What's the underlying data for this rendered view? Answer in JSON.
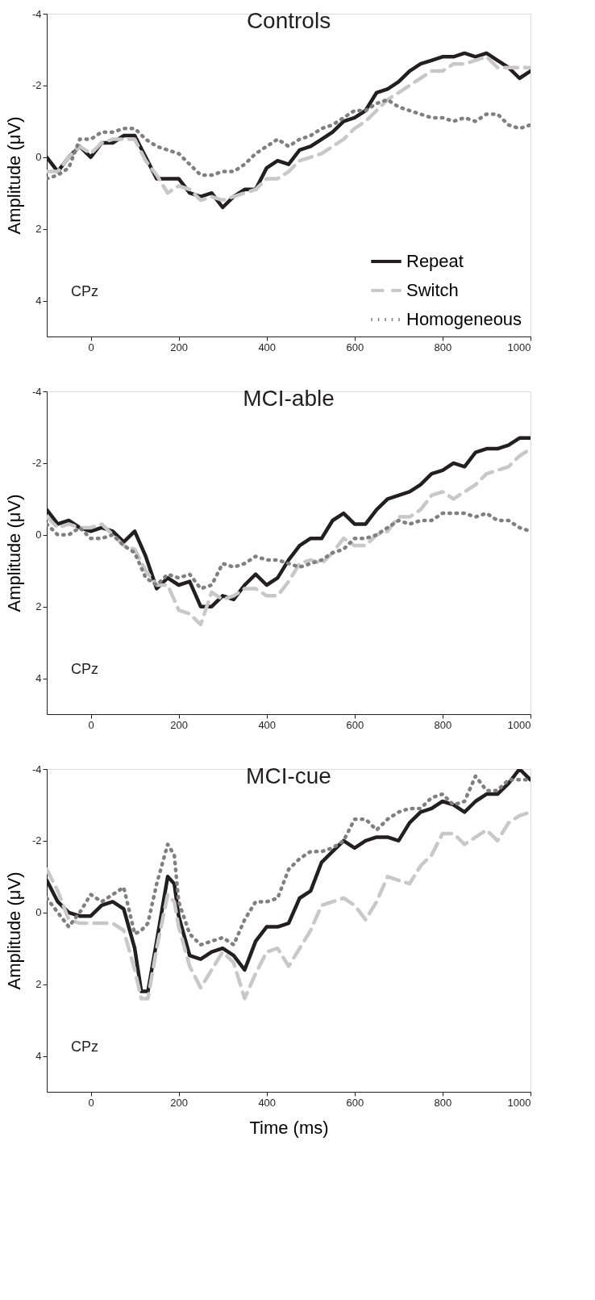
{
  "chart_data": [
    {
      "type": "line",
      "title": "Controls",
      "ylabel": "Amplitude (μV)",
      "annotations": [
        "CPz"
      ],
      "legend": "bottom right",
      "grid": false,
      "x": [
        -100,
        -75,
        -50,
        -25,
        0,
        25,
        50,
        75,
        100,
        125,
        150,
        175,
        200,
        225,
        250,
        275,
        300,
        325,
        350,
        375,
        400,
        425,
        450,
        475,
        500,
        525,
        550,
        575,
        600,
        625,
        650,
        675,
        700,
        725,
        750,
        775,
        800,
        825,
        850,
        875,
        900,
        925,
        950,
        975,
        1000
      ],
      "xlim": [
        -100,
        1000
      ],
      "xticks": [
        0,
        200,
        400,
        600,
        800,
        1000
      ],
      "ylim": [
        5,
        -4
      ],
      "yticks": [
        -4,
        -2,
        0,
        2,
        4
      ],
      "series": [
        {
          "name": "Repeat",
          "color": "#231f20",
          "line_style": "solid",
          "values": [
            0.0,
            0.4,
            0.0,
            -0.3,
            0.0,
            -0.4,
            -0.4,
            -0.6,
            -0.6,
            0.0,
            0.6,
            0.6,
            0.6,
            1.0,
            1.1,
            1.0,
            1.4,
            1.1,
            0.9,
            0.9,
            0.3,
            0.1,
            0.2,
            -0.2,
            -0.3,
            -0.5,
            -0.7,
            -1.0,
            -1.1,
            -1.3,
            -1.8,
            -1.9,
            -2.1,
            -2.4,
            -2.6,
            -2.7,
            -2.8,
            -2.8,
            -2.9,
            -2.8,
            -2.9,
            -2.7,
            -2.5,
            -2.2,
            -2.4
          ]
        },
        {
          "name": "Switch",
          "color": "#c8c8c8",
          "line_style": "dashed",
          "values": [
            0.4,
            0.4,
            0.0,
            -0.3,
            -0.1,
            -0.4,
            -0.5,
            -0.5,
            -0.5,
            0.1,
            0.5,
            1.0,
            0.8,
            0.9,
            1.2,
            1.1,
            1.2,
            1.1,
            1.0,
            0.9,
            0.6,
            0.6,
            0.4,
            0.1,
            0.0,
            -0.1,
            -0.3,
            -0.5,
            -0.8,
            -1.0,
            -1.3,
            -1.6,
            -1.8,
            -2.0,
            -2.2,
            -2.4,
            -2.4,
            -2.6,
            -2.6,
            -2.7,
            -2.8,
            -2.5,
            -2.5,
            -2.5,
            -2.5
          ]
        },
        {
          "name": "Homogeneous",
          "color": "#808080",
          "line_style": "dotted",
          "values": [
            0.6,
            0.5,
            0.3,
            -0.5,
            -0.5,
            -0.7,
            -0.7,
            -0.8,
            -0.8,
            -0.5,
            -0.3,
            -0.2,
            -0.1,
            0.2,
            0.5,
            0.5,
            0.4,
            0.4,
            0.2,
            -0.1,
            -0.3,
            -0.5,
            -0.3,
            -0.5,
            -0.6,
            -0.8,
            -0.9,
            -1.1,
            -1.3,
            -1.3,
            -1.5,
            -1.6,
            -1.4,
            -1.3,
            -1.2,
            -1.1,
            -1.1,
            -1.0,
            -1.1,
            -1.0,
            -1.2,
            -1.2,
            -0.9,
            -0.8,
            -0.9
          ]
        }
      ]
    },
    {
      "type": "line",
      "title": "MCI-able",
      "ylabel": "Amplitude (μV)",
      "annotations": [
        "CPz"
      ],
      "grid": false,
      "x": [
        -100,
        -75,
        -50,
        -25,
        0,
        25,
        50,
        75,
        100,
        125,
        150,
        175,
        200,
        225,
        250,
        275,
        300,
        325,
        350,
        375,
        400,
        425,
        450,
        475,
        500,
        525,
        550,
        575,
        600,
        625,
        650,
        675,
        700,
        725,
        750,
        775,
        800,
        825,
        850,
        875,
        900,
        925,
        950,
        975,
        1000
      ],
      "xlim": [
        -100,
        1000
      ],
      "xticks": [
        0,
        200,
        400,
        600,
        800,
        1000
      ],
      "ylim": [
        5,
        -4
      ],
      "yticks": [
        -4,
        -2,
        0,
        2,
        4
      ],
      "series": [
        {
          "color": "#231f20",
          "line_style": "solid",
          "values": [
            -0.7,
            -0.3,
            -0.4,
            -0.2,
            -0.1,
            -0.2,
            -0.1,
            0.2,
            -0.1,
            0.6,
            1.5,
            1.2,
            1.4,
            1.3,
            2.0,
            2.0,
            1.7,
            1.8,
            1.4,
            1.1,
            1.4,
            1.2,
            0.7,
            0.3,
            0.1,
            0.1,
            -0.4,
            -0.6,
            -0.3,
            -0.3,
            -0.7,
            -1.0,
            -1.1,
            -1.2,
            -1.4,
            -1.7,
            -1.8,
            -2.0,
            -1.9,
            -2.3,
            -2.4,
            -2.4,
            -2.5,
            -2.7,
            -2.7
          ]
        },
        {
          "color": "#c8c8c8",
          "line_style": "dashed",
          "values": [
            -0.5,
            -0.2,
            -0.3,
            -0.2,
            -0.2,
            -0.3,
            0.0,
            0.3,
            0.4,
            1.0,
            1.4,
            1.4,
            2.1,
            2.2,
            2.5,
            1.6,
            1.8,
            1.7,
            1.5,
            1.5,
            1.7,
            1.7,
            1.3,
            0.8,
            0.7,
            0.8,
            0.5,
            0.1,
            0.3,
            0.3,
            0.0,
            -0.1,
            -0.5,
            -0.5,
            -0.7,
            -1.1,
            -1.2,
            -1.0,
            -1.2,
            -1.4,
            -1.7,
            -1.8,
            -1.9,
            -2.2,
            -2.4
          ]
        },
        {
          "color": "#808080",
          "line_style": "dotted",
          "values": [
            -0.3,
            0.0,
            0.0,
            -0.2,
            0.1,
            0.1,
            0.0,
            0.3,
            0.5,
            1.2,
            1.4,
            1.1,
            1.2,
            1.1,
            1.5,
            1.4,
            0.8,
            0.9,
            0.8,
            0.6,
            0.7,
            0.7,
            0.8,
            0.9,
            0.8,
            0.7,
            0.5,
            0.4,
            0.1,
            0.1,
            0.0,
            -0.2,
            -0.4,
            -0.3,
            -0.4,
            -0.4,
            -0.6,
            -0.6,
            -0.6,
            -0.5,
            -0.6,
            -0.4,
            -0.4,
            -0.2,
            -0.1
          ]
        }
      ]
    },
    {
      "type": "line",
      "title": "MCI-cue",
      "xlabel": "Time (ms)",
      "ylabel": "Amplitude (μV)",
      "annotations": [
        "CPz"
      ],
      "grid": false,
      "x": [
        -100,
        -75,
        -50,
        -25,
        0,
        25,
        50,
        75,
        100,
        115,
        130,
        150,
        175,
        190,
        200,
        225,
        250,
        275,
        300,
        325,
        350,
        375,
        400,
        425,
        450,
        475,
        500,
        525,
        550,
        575,
        600,
        625,
        650,
        675,
        700,
        725,
        750,
        775,
        800,
        825,
        850,
        875,
        900,
        925,
        950,
        975,
        1000
      ],
      "xlim": [
        -100,
        1000
      ],
      "xticks": [
        0,
        200,
        400,
        600,
        800,
        1000
      ],
      "ylim": [
        5,
        -4
      ],
      "yticks": [
        -4,
        -2,
        0,
        2,
        4
      ],
      "series": [
        {
          "color": "#231f20",
          "line_style": "solid",
          "values": [
            -0.9,
            -0.3,
            0.0,
            0.1,
            0.1,
            -0.2,
            -0.3,
            -0.1,
            1.0,
            2.2,
            2.2,
            0.8,
            -1.0,
            -0.8,
            0.1,
            1.2,
            1.3,
            1.1,
            1.0,
            1.2,
            1.6,
            0.8,
            0.4,
            0.4,
            0.3,
            -0.4,
            -0.6,
            -1.4,
            -1.7,
            -2.0,
            -1.8,
            -2.0,
            -2.1,
            -2.1,
            -2.0,
            -2.5,
            -2.8,
            -2.9,
            -3.1,
            -3.0,
            -2.8,
            -3.1,
            -3.3,
            -3.3,
            -3.6,
            -4.0,
            -3.7
          ]
        },
        {
          "color": "#c8c8c8",
          "line_style": "dashed",
          "values": [
            -1.2,
            -0.6,
            0.2,
            0.3,
            0.3,
            0.3,
            0.3,
            0.5,
            1.6,
            2.4,
            2.4,
            1.0,
            -0.5,
            -0.3,
            0.4,
            1.5,
            2.1,
            1.6,
            1.1,
            1.4,
            2.4,
            1.7,
            1.1,
            1.0,
            1.5,
            1.0,
            0.5,
            -0.2,
            -0.3,
            -0.4,
            -0.2,
            0.2,
            -0.3,
            -1.0,
            -0.9,
            -0.8,
            -1.3,
            -1.6,
            -2.2,
            -2.2,
            -1.9,
            -2.1,
            -2.3,
            -2.0,
            -2.5,
            -2.7,
            -2.8
          ]
        },
        {
          "color": "#808080",
          "line_style": "dotted",
          "values": [
            -0.4,
            0.0,
            0.4,
            0.0,
            -0.5,
            -0.3,
            -0.5,
            -0.7,
            0.6,
            0.5,
            0.3,
            -0.8,
            -1.9,
            -1.6,
            -0.3,
            0.6,
            0.9,
            0.8,
            0.7,
            0.9,
            0.2,
            -0.3,
            -0.3,
            -0.4,
            -1.2,
            -1.5,
            -1.7,
            -1.7,
            -1.8,
            -2.0,
            -2.6,
            -2.6,
            -2.3,
            -2.6,
            -2.8,
            -2.9,
            -2.9,
            -3.2,
            -3.3,
            -3.0,
            -3.1,
            -3.8,
            -3.4,
            -3.4,
            -3.7,
            -3.7,
            -3.7
          ]
        }
      ]
    }
  ]
}
